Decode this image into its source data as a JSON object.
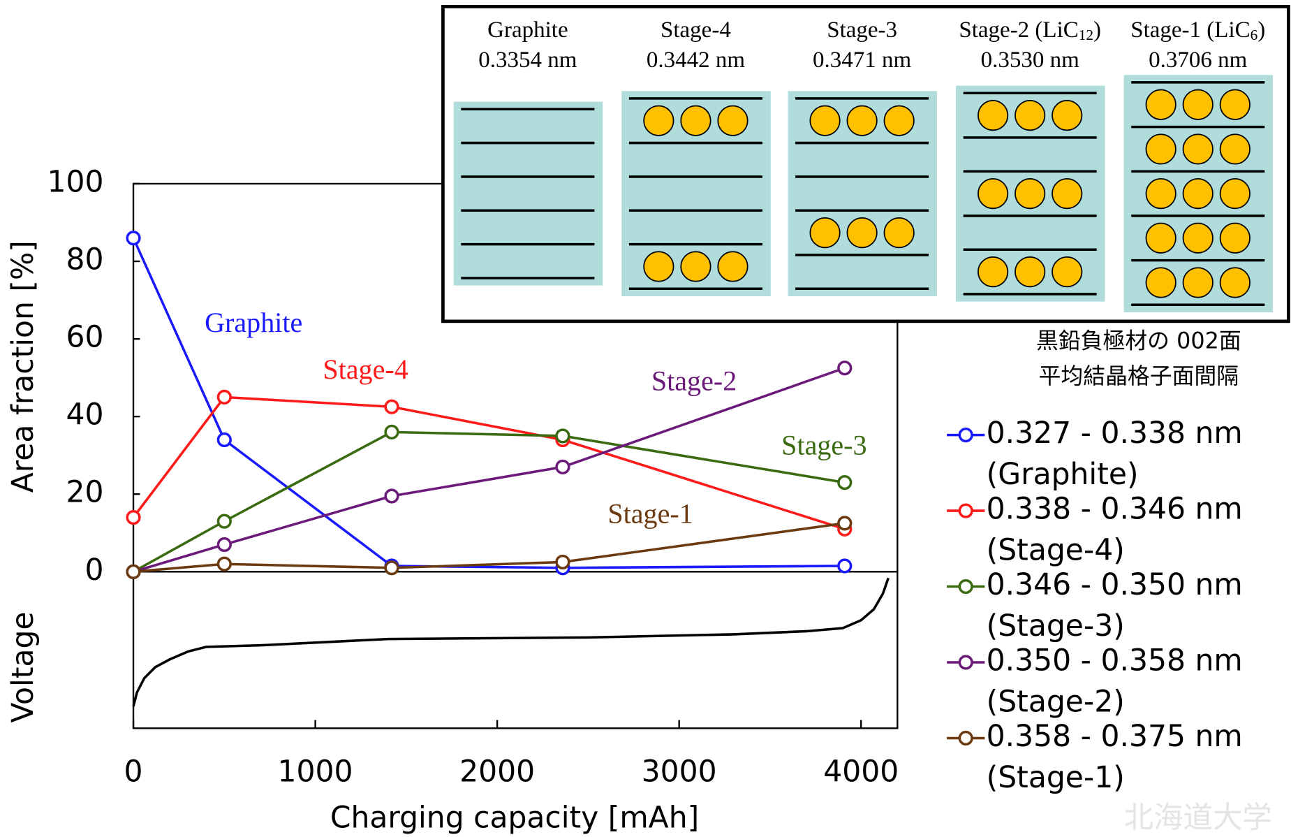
{
  "chart_data": [
    {
      "type": "line",
      "ylabel": "Area fraction [%]",
      "x": [
        0,
        500,
        1420,
        2360,
        3910
      ],
      "xlim": [
        0,
        4200
      ],
      "ylim": [
        0,
        100
      ],
      "yticks": [
        0,
        20,
        40,
        60,
        80,
        100
      ],
      "markers": true,
      "legend_title": [
        "黒鉛負極材の 002面",
        "平均結晶格子面間隔"
      ],
      "legend_position": "right",
      "series": [
        {
          "name": "0.327 - 0.338 nm",
          "label": "(Graphite)",
          "annotation": "Graphite",
          "color": "#1a1aff",
          "values": [
            86,
            34,
            1.5,
            1,
            1.5
          ]
        },
        {
          "name": "0.338 - 0.346 nm",
          "label": "(Stage-4)",
          "annotation": "Stage-4",
          "color": "#ff1a1a",
          "values": [
            14,
            45,
            42.5,
            34,
            11
          ]
        },
        {
          "name": "0.346 - 0.350 nm",
          "label": "(Stage-3)",
          "annotation": "Stage-3",
          "color": "#3a6b10",
          "values": [
            0,
            13,
            36,
            35,
            23
          ]
        },
        {
          "name": "0.350 - 0.358 nm",
          "label": "(Stage-2)",
          "annotation": "Stage-2",
          "color": "#6b1a7a",
          "values": [
            0,
            7,
            19.5,
            27,
            52.5
          ]
        },
        {
          "name": "0.358 - 0.375 nm",
          "label": "(Stage-1)",
          "annotation": "Stage-1",
          "color": "#6b3a10",
          "values": [
            0,
            2,
            1,
            2.5,
            12.5
          ]
        }
      ]
    },
    {
      "type": "line",
      "ylabel": "Voltage",
      "xlabel": "Charging capacity [mAh]",
      "color": "#000000",
      "x": [
        0,
        20,
        60,
        120,
        200,
        300,
        400,
        700,
        1400,
        2500,
        3300,
        3700,
        3900,
        4000,
        4070,
        4120,
        4150
      ],
      "values": [
        0.14,
        0.23,
        0.32,
        0.39,
        0.44,
        0.49,
        0.52,
        0.53,
        0.57,
        0.58,
        0.6,
        0.62,
        0.64,
        0.69,
        0.76,
        0.86,
        0.96
      ],
      "xlim": [
        0,
        4200
      ],
      "ylim": [
        0,
        1
      ],
      "xticks": [
        0,
        1000,
        2000,
        3000,
        4000
      ]
    }
  ],
  "inset": {
    "stages": [
      {
        "name": [
          "Graphite"
        ],
        "spacing": "0.3354 nm"
      },
      {
        "name": [
          "Stage-4"
        ],
        "spacing": "0.3442 nm"
      },
      {
        "name": [
          "Stage-3"
        ],
        "spacing": "0.3471 nm"
      },
      {
        "name": [
          "Stage-2 (LiC",
          "12",
          ")"
        ],
        "spacing": "0.3530 nm"
      },
      {
        "name": [
          "Stage-1 (LiC",
          "6",
          ")"
        ],
        "spacing": "0.3706 nm"
      }
    ]
  },
  "watermark": "北海道大学"
}
